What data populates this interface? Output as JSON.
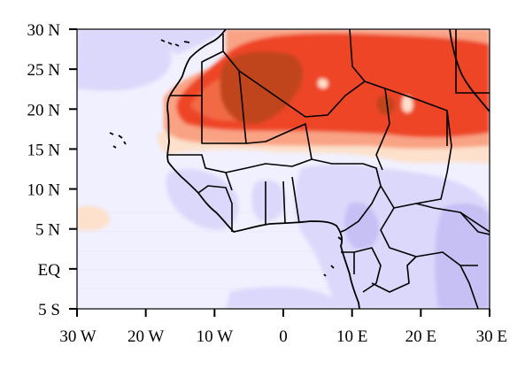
{
  "map": {
    "lon_range": [
      -30,
      30
    ],
    "lat_range": [
      -5,
      30
    ],
    "x_ticks": [
      {
        "value": -30,
        "label": "30 W"
      },
      {
        "value": -20,
        "label": "20 W"
      },
      {
        "value": -10,
        "label": "10 W"
      },
      {
        "value": 0,
        "label": "0"
      },
      {
        "value": 10,
        "label": "10 E"
      },
      {
        "value": 20,
        "label": "20 E"
      },
      {
        "value": 30,
        "label": "30 E"
      }
    ],
    "y_ticks": [
      {
        "value": 30,
        "label": "30 N"
      },
      {
        "value": 25,
        "label": "25 N"
      },
      {
        "value": 20,
        "label": "20 N"
      },
      {
        "value": 15,
        "label": "15 N"
      },
      {
        "value": 10,
        "label": "10 N"
      },
      {
        "value": 5,
        "label": "5 N"
      },
      {
        "value": 0,
        "label": "EQ"
      },
      {
        "value": -5,
        "label": "5 S"
      }
    ],
    "colors": {
      "background": "#f1f0ff",
      "light_purple": "#dcd8fb",
      "mid_purple": "#c6c0f5",
      "deep_purple": "#a89be8",
      "peach": "#fde1cc",
      "salmon": "#f9a384",
      "red": "#ee4527",
      "orange_red": "#f26a45",
      "brown": "#c0441c",
      "coast": "#000000"
    }
  }
}
